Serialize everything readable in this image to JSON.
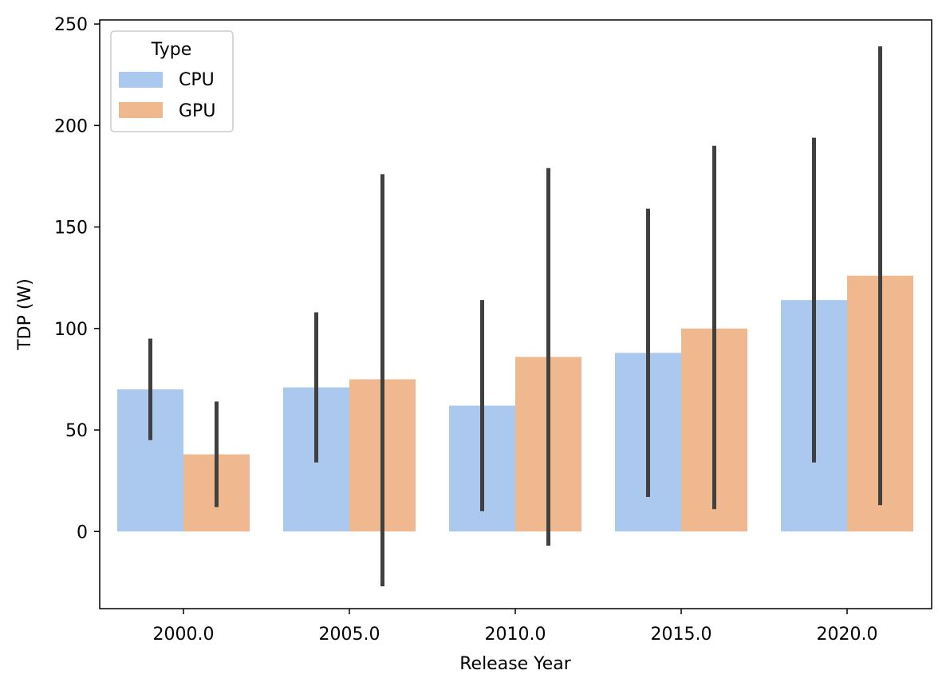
{
  "chart_data": {
    "type": "bar",
    "xlabel": "Release Year",
    "ylabel": "TDP (W)",
    "categories": [
      "2000.0",
      "2005.0",
      "2010.0",
      "2015.0",
      "2020.0"
    ],
    "ylim": [
      -38,
      252
    ],
    "yticks": [
      0,
      50,
      100,
      150,
      200,
      250
    ],
    "grid": false,
    "legend": {
      "title": "Type",
      "placement": "top-left"
    },
    "series": [
      {
        "name": "CPU",
        "color": "#abc9ef",
        "values": [
          70,
          71,
          62,
          88,
          114
        ],
        "error_low": [
          45,
          34,
          10,
          17,
          34
        ],
        "error_high": [
          95,
          108,
          114,
          159,
          194
        ]
      },
      {
        "name": "GPU",
        "color": "#f0b88f",
        "values": [
          38,
          75,
          86,
          100,
          126
        ],
        "error_low": [
          12,
          -27,
          -7,
          11,
          13
        ],
        "error_high": [
          64,
          176,
          179,
          190,
          239
        ]
      }
    ],
    "errorbar_color": "#404040"
  }
}
